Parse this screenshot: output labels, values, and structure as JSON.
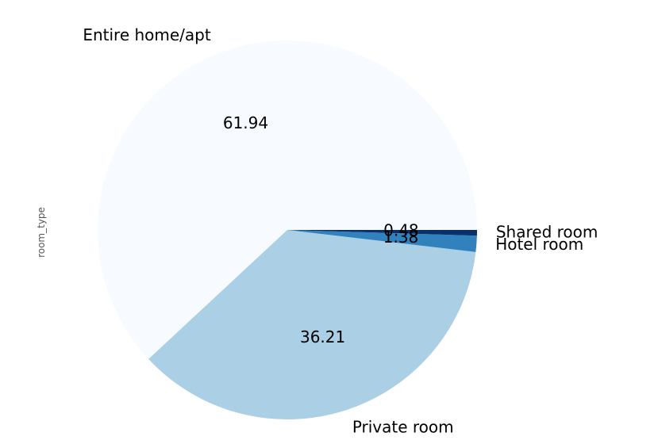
{
  "chart_data": {
    "type": "pie",
    "title": "",
    "ylabel": "room_type",
    "slices": [
      {
        "label": "Entire home/apt",
        "value": 61.94,
        "pct_label": "61.94",
        "color": "#f7fbff"
      },
      {
        "label": "Private room",
        "value": 36.21,
        "pct_label": "36.21",
        "color": "#abcfe5"
      },
      {
        "label": "Hotel room",
        "value": 1.38,
        "pct_label": "1.38",
        "color": "#3181bd"
      },
      {
        "label": "Shared room",
        "value": 0.48,
        "pct_label": "0.48",
        "color": "#08306b"
      }
    ]
  }
}
